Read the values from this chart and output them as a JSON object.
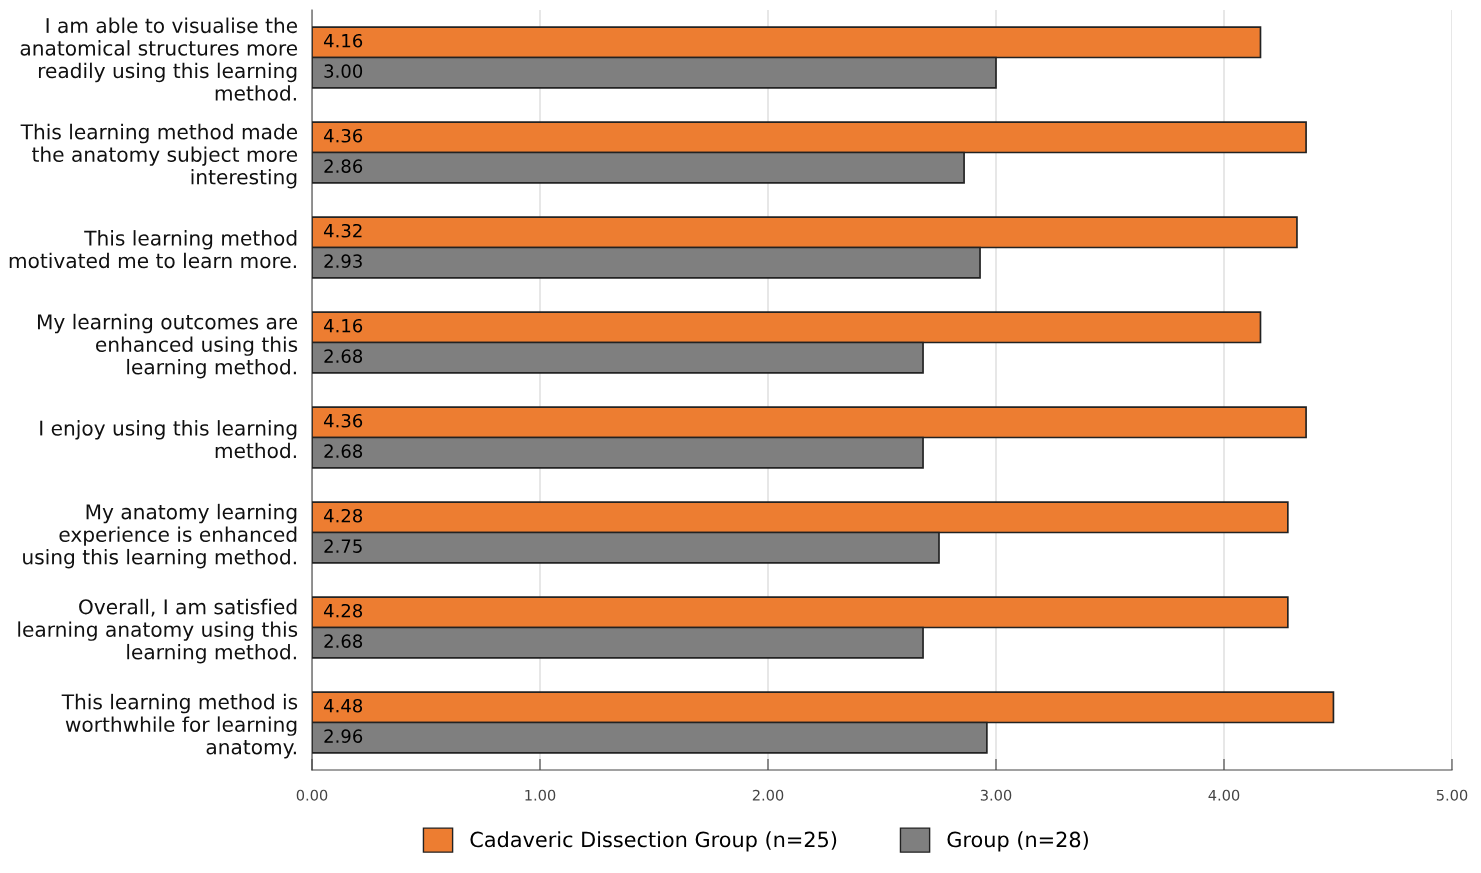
{
  "chart_data": {
    "type": "bar",
    "orientation": "horizontal",
    "categories": [
      "I am able to visualise the anatomical structures more readily using this learning method.",
      "This learning method made the anatomy subject more interesting",
      "This learning method motivated me to learn more.",
      "My learning outcomes are enhanced using this learning method.",
      "I enjoy using this learning method.",
      "My anatomy learning experience is enhanced using this learning method.",
      "Overall, I am satisfied learning anatomy using this learning method.",
      "This learning method is worthwhile for learning anatomy."
    ],
    "series": [
      {
        "name": "Cadaveric Dissection Group (n=25)",
        "color": "#ed7d31",
        "values": [
          4.16,
          4.36,
          4.32,
          4.16,
          4.36,
          4.28,
          4.28,
          4.48
        ],
        "value_labels": [
          "4.16",
          "4.36",
          "4.32",
          "4.16",
          "4.36",
          "4.28",
          "4.28",
          "4.48"
        ]
      },
      {
        "name": "Group (n=28)",
        "color": "#7f7f7f",
        "values": [
          3.0,
          2.86,
          2.93,
          2.68,
          2.68,
          2.75,
          2.68,
          2.96
        ],
        "value_labels": [
          "3.00",
          "2.86",
          "2.93",
          "2.68",
          "2.68",
          "2.75",
          "2.68",
          "2.96"
        ]
      }
    ],
    "xlim": [
      0,
      5
    ],
    "xticks": [
      {
        "value": 0,
        "label": "0.00"
      },
      {
        "value": 1,
        "label": "1.00"
      },
      {
        "value": 2,
        "label": "2.00"
      },
      {
        "value": 3,
        "label": "3.00"
      },
      {
        "value": 4,
        "label": "4.00"
      },
      {
        "value": 5,
        "label": "5.00"
      }
    ],
    "grid": "x",
    "legend": "bottom"
  }
}
